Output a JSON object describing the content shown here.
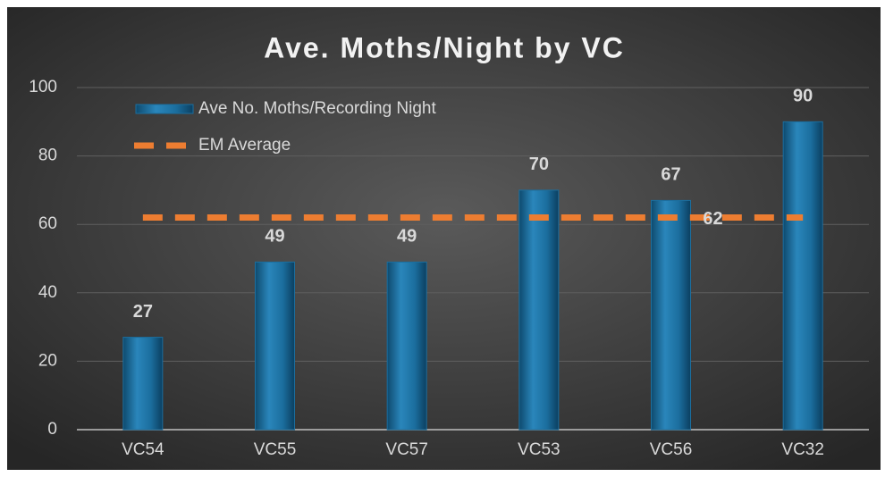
{
  "chart_data": {
    "type": "bar",
    "title": "Ave. Moths/Night by VC",
    "categories": [
      "VC54",
      "VC55",
      "VC57",
      "VC53",
      "VC56",
      "VC32"
    ],
    "series": [
      {
        "name": "Ave No. Moths/Recording Night",
        "type": "bar",
        "color": "#1b6e9e",
        "values": [
          27,
          49,
          49,
          70,
          67,
          90
        ]
      },
      {
        "name": "EM Average",
        "type": "line",
        "color": "#ed7d31",
        "values": [
          62,
          62,
          62,
          62,
          62,
          62
        ]
      }
    ],
    "ylim": [
      0,
      100
    ],
    "yticks": [
      0,
      20,
      40,
      60,
      80,
      100
    ],
    "grid": true,
    "legend": "top-left"
  }
}
